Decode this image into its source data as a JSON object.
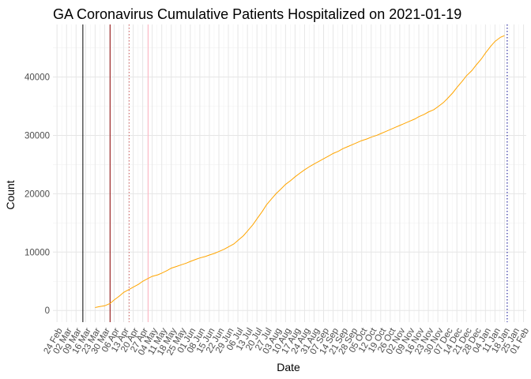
{
  "chart_data": {
    "type": "line",
    "title": "GA Coronavirus Cumulative Patients Hospitalized on 2021-01-19",
    "xlabel": "Date",
    "ylabel": "Count",
    "grid": true,
    "ylim": [
      -2000,
      49000
    ],
    "y_ticks": [
      0,
      10000,
      20000,
      30000,
      40000
    ],
    "y_tick_labels": [
      "0",
      "10000",
      "20000",
      "30000",
      "40000"
    ],
    "x_ticks": [
      "2020-02-24",
      "2020-03-02",
      "2020-03-09",
      "2020-03-16",
      "2020-03-23",
      "2020-03-30",
      "2020-04-06",
      "2020-04-13",
      "2020-04-20",
      "2020-04-27",
      "2020-05-04",
      "2020-05-11",
      "2020-05-18",
      "2020-05-25",
      "2020-06-01",
      "2020-06-08",
      "2020-06-15",
      "2020-06-22",
      "2020-06-29",
      "2020-07-06",
      "2020-07-13",
      "2020-07-20",
      "2020-07-27",
      "2020-08-03",
      "2020-08-10",
      "2020-08-17",
      "2020-08-24",
      "2020-08-31",
      "2020-09-07",
      "2020-09-14",
      "2020-09-21",
      "2020-09-28",
      "2020-10-05",
      "2020-10-12",
      "2020-10-19",
      "2020-10-26",
      "2020-11-02",
      "2020-11-09",
      "2020-11-16",
      "2020-11-23",
      "2020-11-30",
      "2020-12-07",
      "2020-12-14",
      "2020-12-21",
      "2020-12-28",
      "2021-01-04",
      "2021-01-11",
      "2021-01-18",
      "2021-01-25",
      "2021-02-01"
    ],
    "x_tick_labels": [
      "24 Feb",
      "02 Mar",
      "09 Mar",
      "16 Mar",
      "23 Mar",
      "30 Mar",
      "06 Apr",
      "13 Apr",
      "20 Apr",
      "27 Apr",
      "04 May",
      "11 May",
      "18 May",
      "25 May",
      "01 Jun",
      "08 Jun",
      "15 Jun",
      "22 Jun",
      "29 Jun",
      "06 Jul",
      "13 Jul",
      "20 Jul",
      "27 Jul",
      "03 Aug",
      "10 Aug",
      "17 Aug",
      "24 Aug",
      "31 Aug",
      "07 Sep",
      "14 Sep",
      "21 Sep",
      "28 Sep",
      "05 Oct",
      "12 Oct",
      "19 Oct",
      "26 Oct",
      "02 Nov",
      "09 Nov",
      "16 Nov",
      "23 Nov",
      "30 Nov",
      "07 Dec",
      "14 Dec",
      "21 Dec",
      "28 Dec",
      "04 Jan",
      "11 Jan",
      "18 Jan",
      "25 Jan",
      "01 Feb"
    ],
    "xlim": [
      "2020-02-21",
      "2021-02-03"
    ],
    "series": [
      {
        "color": "#FFA500",
        "points": [
          [
            "2020-03-23",
            500
          ],
          [
            "2020-03-26",
            650
          ],
          [
            "2020-03-30",
            800
          ],
          [
            "2020-04-03",
            1200
          ],
          [
            "2020-04-06",
            1800
          ],
          [
            "2020-04-10",
            2500
          ],
          [
            "2020-04-13",
            3100
          ],
          [
            "2020-04-17",
            3600
          ],
          [
            "2020-04-20",
            4000
          ],
          [
            "2020-04-24",
            4500
          ],
          [
            "2020-04-27",
            5000
          ],
          [
            "2020-05-01",
            5500
          ],
          [
            "2020-05-04",
            5850
          ],
          [
            "2020-05-08",
            6100
          ],
          [
            "2020-05-11",
            6400
          ],
          [
            "2020-05-15",
            6850
          ],
          [
            "2020-05-18",
            7250
          ],
          [
            "2020-05-22",
            7550
          ],
          [
            "2020-05-25",
            7800
          ],
          [
            "2020-05-29",
            8100
          ],
          [
            "2020-06-01",
            8400
          ],
          [
            "2020-06-05",
            8750
          ],
          [
            "2020-06-08",
            9000
          ],
          [
            "2020-06-12",
            9250
          ],
          [
            "2020-06-15",
            9500
          ],
          [
            "2020-06-19",
            9800
          ],
          [
            "2020-06-22",
            10100
          ],
          [
            "2020-06-26",
            10500
          ],
          [
            "2020-06-29",
            10900
          ],
          [
            "2020-07-03",
            11400
          ],
          [
            "2020-07-06",
            12000
          ],
          [
            "2020-07-10",
            12800
          ],
          [
            "2020-07-13",
            13600
          ],
          [
            "2020-07-17",
            14700
          ],
          [
            "2020-07-20",
            15700
          ],
          [
            "2020-07-24",
            17000
          ],
          [
            "2020-07-27",
            18100
          ],
          [
            "2020-07-31",
            19200
          ],
          [
            "2020-08-03",
            20000
          ],
          [
            "2020-08-07",
            20900
          ],
          [
            "2020-08-10",
            21600
          ],
          [
            "2020-08-14",
            22300
          ],
          [
            "2020-08-17",
            22900
          ],
          [
            "2020-08-21",
            23600
          ],
          [
            "2020-08-24",
            24100
          ],
          [
            "2020-08-28",
            24700
          ],
          [
            "2020-08-31",
            25100
          ],
          [
            "2020-09-04",
            25600
          ],
          [
            "2020-09-07",
            26000
          ],
          [
            "2020-09-11",
            26500
          ],
          [
            "2020-09-14",
            26900
          ],
          [
            "2020-09-18",
            27300
          ],
          [
            "2020-09-21",
            27700
          ],
          [
            "2020-09-25",
            28100
          ],
          [
            "2020-09-28",
            28400
          ],
          [
            "2020-10-02",
            28800
          ],
          [
            "2020-10-05",
            29100
          ],
          [
            "2020-10-09",
            29400
          ],
          [
            "2020-10-12",
            29700
          ],
          [
            "2020-10-16",
            30000
          ],
          [
            "2020-10-19",
            30300
          ],
          [
            "2020-10-23",
            30700
          ],
          [
            "2020-10-26",
            31000
          ],
          [
            "2020-10-30",
            31400
          ],
          [
            "2020-11-02",
            31700
          ],
          [
            "2020-11-06",
            32100
          ],
          [
            "2020-11-09",
            32400
          ],
          [
            "2020-11-13",
            32800
          ],
          [
            "2020-11-16",
            33200
          ],
          [
            "2020-11-20",
            33600
          ],
          [
            "2020-11-23",
            34000
          ],
          [
            "2020-11-27",
            34400
          ],
          [
            "2020-11-30",
            34900
          ],
          [
            "2020-12-04",
            35600
          ],
          [
            "2020-12-07",
            36300
          ],
          [
            "2020-12-11",
            37300
          ],
          [
            "2020-12-14",
            38200
          ],
          [
            "2020-12-18",
            39300
          ],
          [
            "2020-12-21",
            40200
          ],
          [
            "2020-12-25",
            41100
          ],
          [
            "2020-12-28",
            42000
          ],
          [
            "2021-01-01",
            43100
          ],
          [
            "2021-01-04",
            44100
          ],
          [
            "2021-01-08",
            45300
          ],
          [
            "2021-01-11",
            46100
          ],
          [
            "2021-01-15",
            46800
          ],
          [
            "2021-01-18",
            47100
          ]
        ]
      }
    ],
    "vertical_lines": [
      {
        "date": "2020-03-14",
        "color": "#000000",
        "style": "solid"
      },
      {
        "date": "2020-04-03",
        "color": "#8B0000",
        "style": "solid"
      },
      {
        "date": "2020-04-17",
        "color": "#CD5C5C",
        "style": "dotted"
      },
      {
        "date": "2020-05-01",
        "color": "#FFB6C1",
        "style": "solid"
      },
      {
        "date": "2021-01-20",
        "color": "#00008B",
        "style": "dotted"
      }
    ]
  }
}
